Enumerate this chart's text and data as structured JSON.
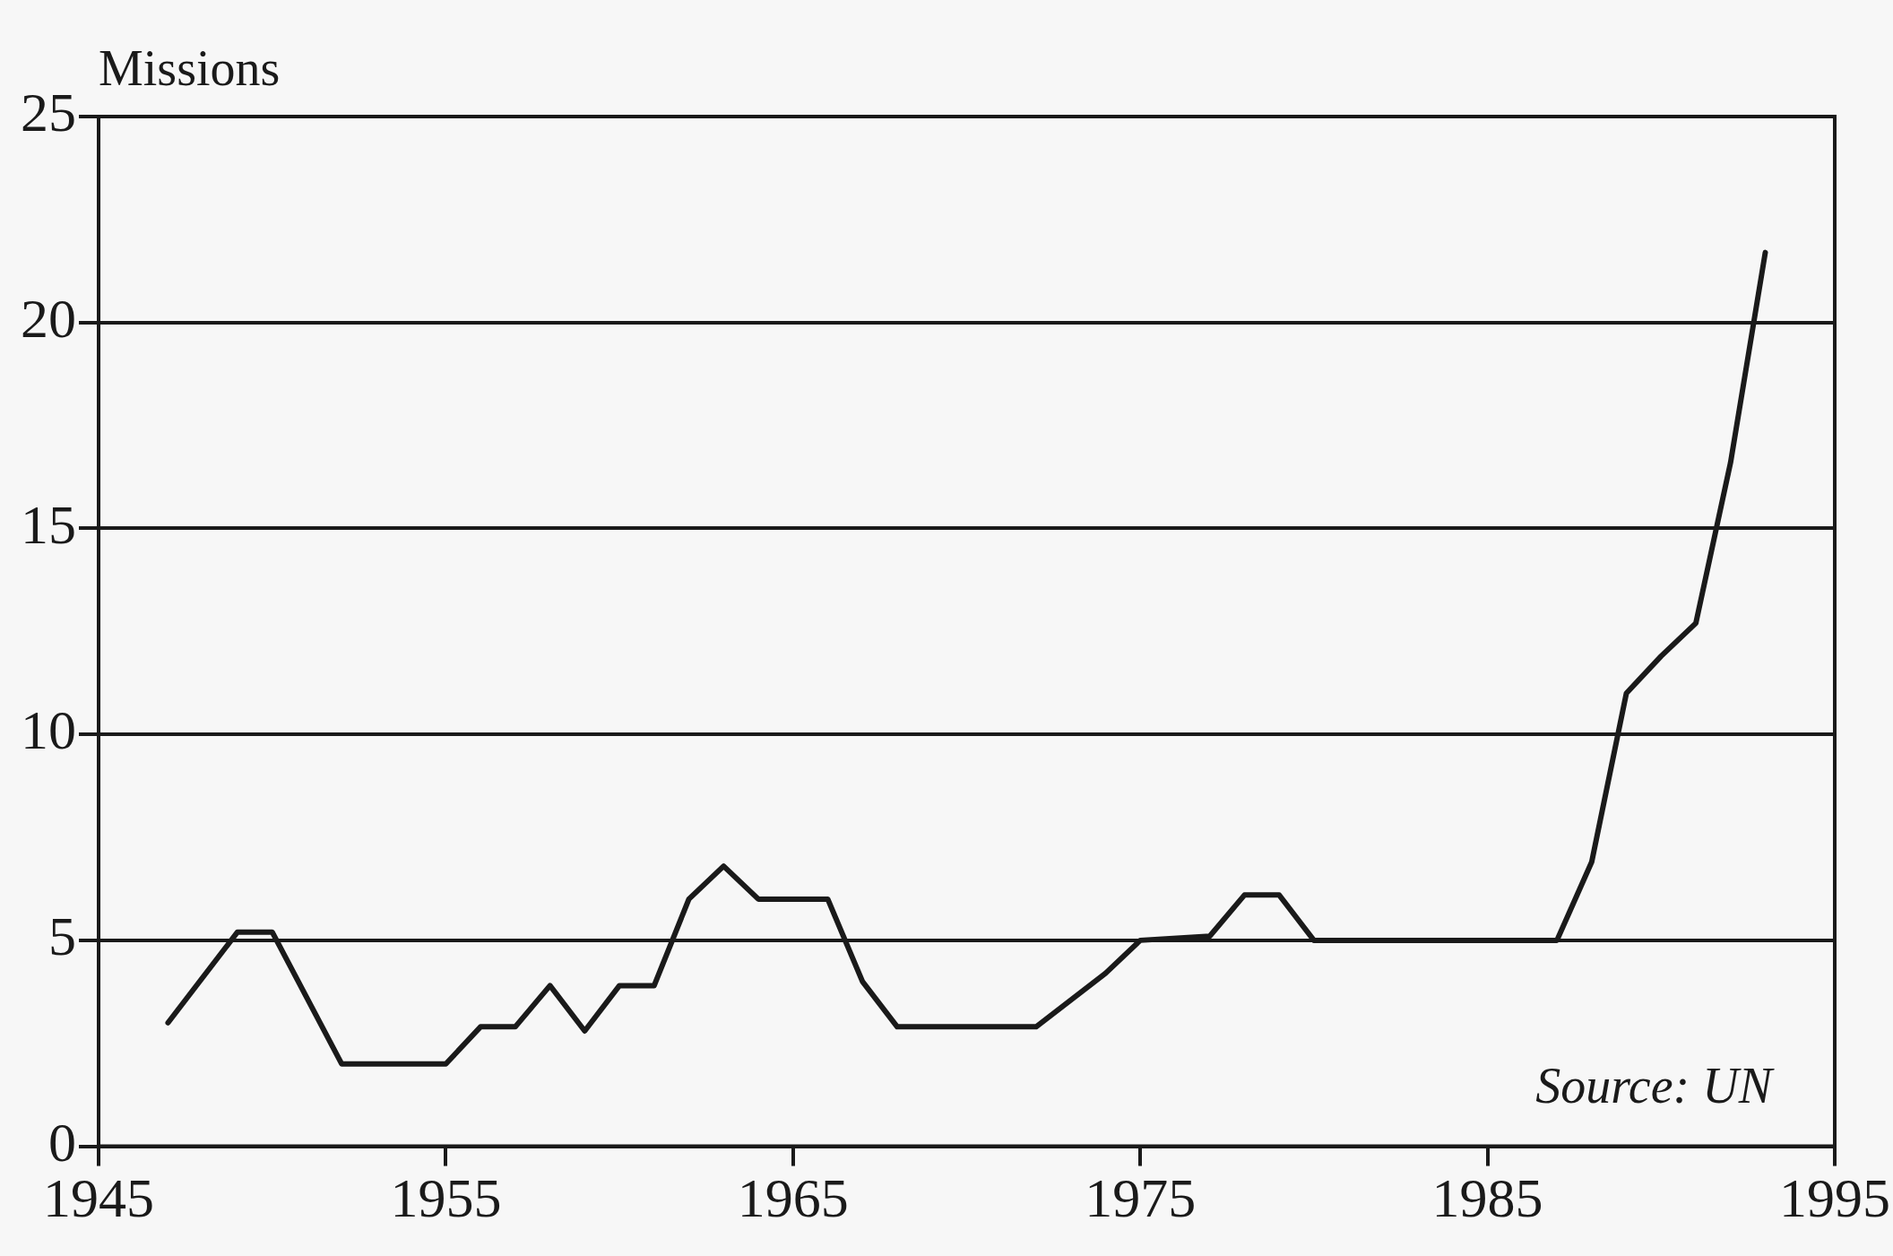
{
  "chart_data": {
    "type": "line",
    "ylabel": "Missions",
    "annotations": [
      "Source: UN"
    ],
    "x": [
      1947,
      1949,
      1950,
      1952,
      1955,
      1956,
      1957,
      1958,
      1959,
      1960,
      1961,
      1962,
      1963,
      1964,
      1966,
      1967,
      1968,
      1972,
      1974,
      1975,
      1977,
      1978,
      1979,
      1980,
      1987,
      1988,
      1989,
      1990,
      1991,
      1992,
      1993
    ],
    "values": [
      3,
      5.2,
      5.2,
      2,
      2,
      2.9,
      2.9,
      3.9,
      2.8,
      3.9,
      3.9,
      6,
      6.8,
      6,
      6,
      4,
      2.9,
      2.9,
      4.2,
      5,
      5.1,
      6.1,
      6.1,
      5,
      5,
      6.9,
      11,
      11.9,
      12.7,
      16.6,
      21.7
    ],
    "color": "#1a1a1a",
    "xlim": [
      1945,
      1995
    ],
    "xticks": [
      1945,
      1955,
      1965,
      1975,
      1985,
      1995
    ],
    "ylim": [
      0,
      25
    ],
    "yticks": [
      0,
      5,
      10,
      15,
      20,
      25
    ],
    "grid": "y",
    "legend": false,
    "marker": "none",
    "line_style": "solid"
  }
}
